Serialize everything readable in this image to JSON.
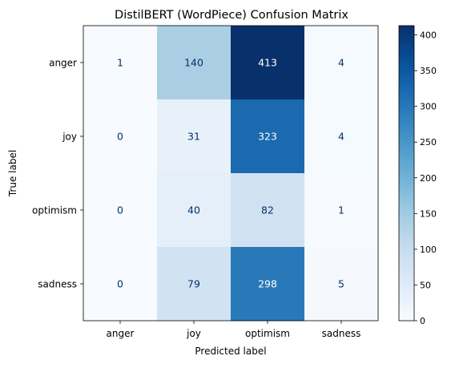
{
  "chart_data": {
    "type": "heatmap",
    "title": "DistilBERT (WordPiece) Confusion Matrix",
    "xlabel": "Predicted label",
    "ylabel": "True label",
    "x_categories": [
      "anger",
      "joy",
      "optimism",
      "sadness"
    ],
    "y_categories": [
      "anger",
      "joy",
      "optimism",
      "sadness"
    ],
    "values": [
      [
        1,
        140,
        413,
        4
      ],
      [
        0,
        31,
        323,
        4
      ],
      [
        0,
        40,
        82,
        1
      ],
      [
        0,
        79,
        298,
        5
      ]
    ],
    "colormap": "Blues",
    "color_range": [
      0,
      413
    ],
    "colorbar_ticks": [
      0,
      50,
      100,
      150,
      200,
      250,
      300,
      350,
      400
    ],
    "colorbar_tick_labels": [
      "0",
      "50",
      "100",
      "150",
      "200",
      "250",
      "300",
      "350",
      "400"
    ],
    "text_color_light": "#ffffff",
    "text_color_dark": "#08306b",
    "grid": false,
    "colorbar_placement": "right"
  }
}
